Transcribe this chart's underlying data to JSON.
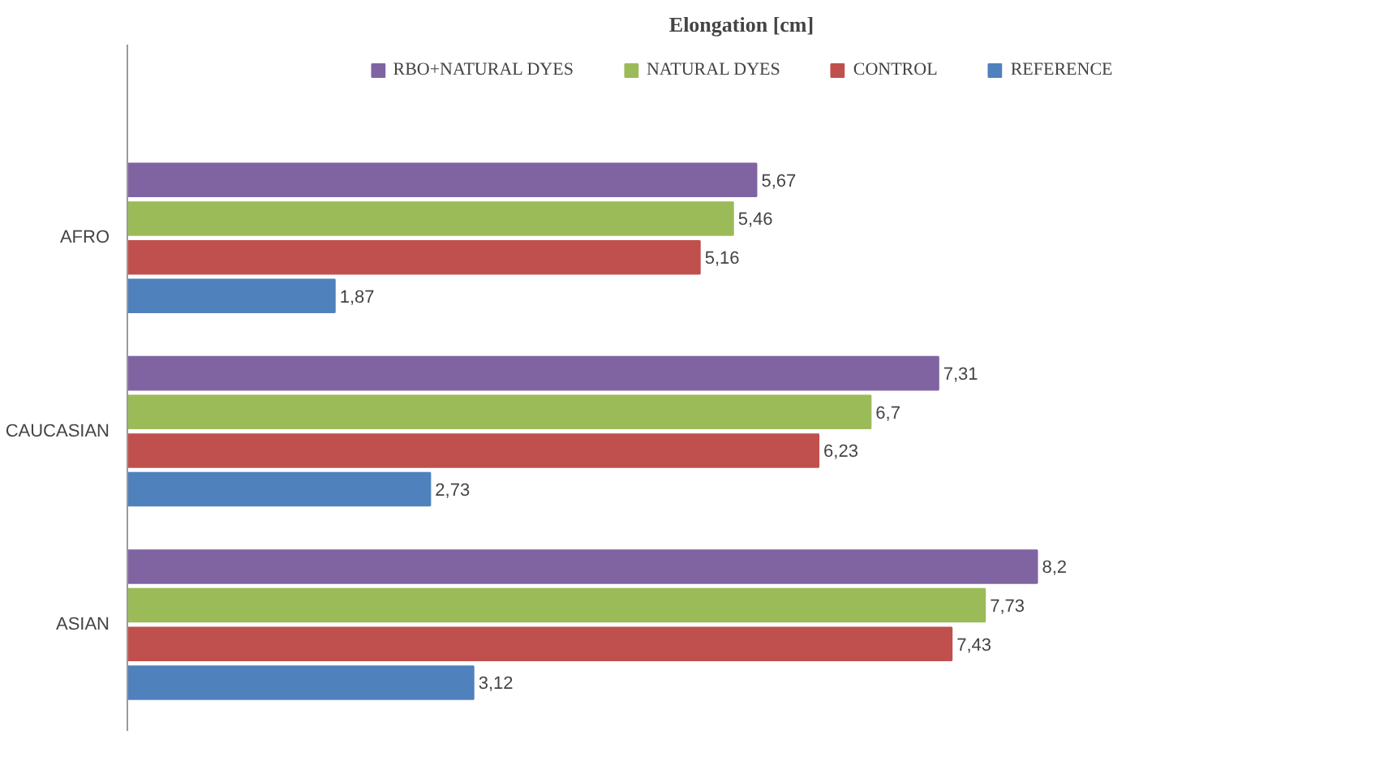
{
  "chart_data": {
    "type": "bar",
    "orientation": "horizontal",
    "title": "Elongation [cm]",
    "categories": [
      "AFRO",
      "CAUCASIAN",
      "ASIAN"
    ],
    "series": [
      {
        "name": "RBO+NATURAL DYES",
        "color": "#8064a2",
        "values": [
          5.67,
          7.31,
          8.2
        ],
        "value_labels": [
          "5,67",
          "7,31",
          "8,2"
        ]
      },
      {
        "name": "NATURAL DYES",
        "color": "#9bbb59",
        "values": [
          5.46,
          6.7,
          7.73
        ],
        "value_labels": [
          "5,46",
          "6,7",
          "7,73"
        ]
      },
      {
        "name": "CONTROL",
        "color": "#c0504d",
        "values": [
          5.16,
          6.23,
          7.43
        ],
        "value_labels": [
          "5,16",
          "6,23",
          "7,43"
        ]
      },
      {
        "name": "REFERENCE",
        "color": "#4f81bd",
        "values": [
          1.87,
          2.73,
          3.12
        ],
        "value_labels": [
          "1,87",
          "2,73",
          "3,12"
        ]
      }
    ],
    "legend": "top",
    "grid": false
  }
}
